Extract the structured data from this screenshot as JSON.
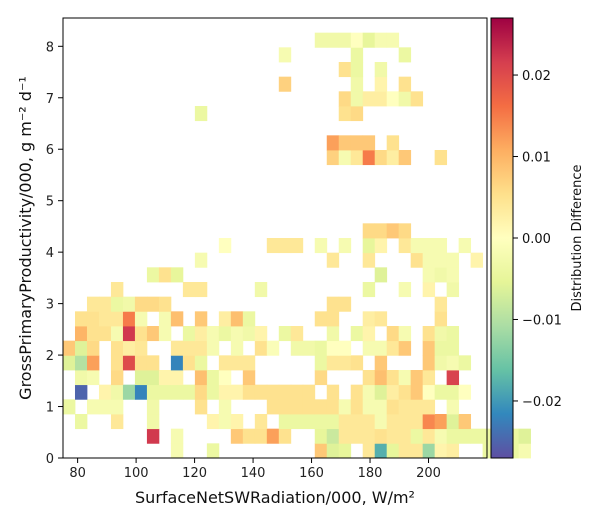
{
  "chart_data": {
    "type": "heatmap",
    "xlabel": "SurfaceNetSWRadiation/000,  W/m²",
    "ylabel": "GrossPrimaryProductivity/000,  g m⁻² d⁻¹",
    "colorbar_label": "Distribution Difference",
    "colormap": "Spectral_r",
    "xlim": [
      75,
      220
    ],
    "ylim": [
      0,
      8.55
    ],
    "clim": [
      -0.027,
      0.027
    ],
    "x_ticks": [
      80,
      100,
      120,
      140,
      160,
      180,
      200
    ],
    "y_ticks": [
      0,
      1,
      2,
      3,
      4,
      5,
      6,
      7,
      8
    ],
    "colorbar_ticks": [
      {
        "value": 0.02,
        "label": "0.02"
      },
      {
        "value": 0.01,
        "label": "0.01"
      },
      {
        "value": 0.0,
        "label": "0.00"
      },
      {
        "value": -0.01,
        "label": "−0.01"
      },
      {
        "value": -0.02,
        "label": "−0.02"
      }
    ],
    "bin_width_x": 4.1,
    "bin_height_y": 0.285,
    "bin_origin_x": 75,
    "bin_origin_y": 0,
    "cells": [
      [
        9,
        0,
        -0.002
      ],
      [
        12,
        0,
        -0.004
      ],
      [
        21,
        0,
        0.008
      ],
      [
        22,
        0,
        -0.006
      ],
      [
        23,
        0,
        -0.005
      ],
      [
        25,
        0,
        0.004
      ],
      [
        26,
        0,
        -0.018
      ],
      [
        27,
        0,
        -0.005
      ],
      [
        28,
        0,
        0.004
      ],
      [
        29,
        0,
        0.004
      ],
      [
        30,
        0,
        -0.012
      ],
      [
        31,
        0,
        0.002
      ],
      [
        32,
        0,
        0.003
      ],
      [
        35,
        0,
        -0.004
      ],
      [
        36,
        0,
        -0.004
      ],
      [
        37,
        0,
        -0.004
      ],
      [
        38,
        0,
        -0.002
      ],
      [
        7,
        1,
        0.022
      ],
      [
        9,
        1,
        -0.002
      ],
      [
        14,
        1,
        0.008
      ],
      [
        15,
        1,
        0.005
      ],
      [
        16,
        1,
        0.005
      ],
      [
        17,
        1,
        0.012
      ],
      [
        18,
        1,
        0.005
      ],
      [
        21,
        1,
        -0.005
      ],
      [
        22,
        1,
        -0.008
      ],
      [
        23,
        1,
        0.004
      ],
      [
        24,
        1,
        0.004
      ],
      [
        25,
        1,
        0.004
      ],
      [
        26,
        1,
        0.005
      ],
      [
        27,
        1,
        0.004
      ],
      [
        28,
        1,
        0.004
      ],
      [
        29,
        1,
        -0.004
      ],
      [
        30,
        1,
        0.004
      ],
      [
        31,
        1,
        -0.002
      ],
      [
        32,
        1,
        -0.004
      ],
      [
        33,
        1,
        -0.004
      ],
      [
        34,
        1,
        -0.004
      ],
      [
        35,
        1,
        -0.004
      ],
      [
        36,
        1,
        -0.004
      ],
      [
        37,
        1,
        -0.004
      ],
      [
        38,
        1,
        -0.006
      ],
      [
        1,
        2,
        -0.004
      ],
      [
        4,
        2,
        0.004
      ],
      [
        7,
        2,
        -0.003
      ],
      [
        12,
        2,
        0.002
      ],
      [
        13,
        2,
        -0.002
      ],
      [
        14,
        2,
        0.002
      ],
      [
        16,
        2,
        0.004
      ],
      [
        18,
        2,
        -0.004
      ],
      [
        19,
        2,
        -0.004
      ],
      [
        20,
        2,
        -0.004
      ],
      [
        21,
        2,
        -0.004
      ],
      [
        22,
        2,
        -0.004
      ],
      [
        23,
        2,
        0.004
      ],
      [
        24,
        2,
        0.004
      ],
      [
        25,
        2,
        0.004
      ],
      [
        26,
        2,
        -0.002
      ],
      [
        27,
        2,
        0.004
      ],
      [
        28,
        2,
        0.004
      ],
      [
        29,
        2,
        0.004
      ],
      [
        30,
        2,
        0.014
      ],
      [
        31,
        2,
        0.012
      ],
      [
        32,
        2,
        -0.006
      ],
      [
        33,
        2,
        0.008
      ],
      [
        36,
        2,
        0
      ],
      [
        0,
        3,
        -0.004
      ],
      [
        2,
        3,
        -0.002
      ],
      [
        3,
        3,
        -0.002
      ],
      [
        4,
        3,
        -0.002
      ],
      [
        7,
        3,
        -0.003
      ],
      [
        11,
        3,
        0.005
      ],
      [
        13,
        3,
        -0.002
      ],
      [
        17,
        3,
        0.005
      ],
      [
        18,
        3,
        0.005
      ],
      [
        19,
        3,
        0.005
      ],
      [
        20,
        3,
        0.005
      ],
      [
        21,
        3,
        0.005
      ],
      [
        22,
        3,
        0.005
      ],
      [
        23,
        3,
        -0.002
      ],
      [
        24,
        3,
        0.005
      ],
      [
        25,
        3,
        -0.002
      ],
      [
        26,
        3,
        -0.002
      ],
      [
        27,
        3,
        0.005
      ],
      [
        28,
        3,
        0.004
      ],
      [
        29,
        3,
        0.004
      ],
      [
        30,
        3,
        0.004
      ],
      [
        32,
        3,
        -0.002
      ],
      [
        1,
        4,
        -0.025
      ],
      [
        3,
        4,
        0.002
      ],
      [
        4,
        4,
        -0.003
      ],
      [
        5,
        4,
        -0.012
      ],
      [
        6,
        4,
        -0.022
      ],
      [
        7,
        4,
        -0.004
      ],
      [
        8,
        4,
        -0.004
      ],
      [
        9,
        4,
        -0.004
      ],
      [
        10,
        4,
        -0.004
      ],
      [
        11,
        4,
        0.006
      ],
      [
        12,
        4,
        -0.004
      ],
      [
        13,
        4,
        0.002
      ],
      [
        14,
        4,
        0.002
      ],
      [
        15,
        4,
        0.005
      ],
      [
        16,
        4,
        0.005
      ],
      [
        17,
        4,
        0.005
      ],
      [
        18,
        4,
        0.005
      ],
      [
        19,
        4,
        0.005
      ],
      [
        20,
        4,
        0.005
      ],
      [
        22,
        4,
        0.005
      ],
      [
        24,
        4,
        0.005
      ],
      [
        25,
        4,
        -0.002
      ],
      [
        26,
        4,
        -0.006
      ],
      [
        27,
        4,
        0.003
      ],
      [
        28,
        4,
        0.005
      ],
      [
        29,
        4,
        0.008
      ],
      [
        30,
        4,
        0
      ],
      [
        31,
        4,
        -0.004
      ],
      [
        32,
        4,
        -0.004
      ],
      [
        33,
        4,
        0
      ],
      [
        1,
        5,
        -0.003
      ],
      [
        2,
        5,
        -0.002
      ],
      [
        4,
        5,
        0.006
      ],
      [
        6,
        5,
        -0.006
      ],
      [
        7,
        5,
        -0.006
      ],
      [
        8,
        5,
        0.002
      ],
      [
        9,
        5,
        0.002
      ],
      [
        11,
        5,
        0.009
      ],
      [
        12,
        5,
        -0.004
      ],
      [
        13,
        5,
        0
      ],
      [
        15,
        5,
        0.008
      ],
      [
        21,
        5,
        0.006
      ],
      [
        25,
        5,
        0.005
      ],
      [
        26,
        5,
        0.009
      ],
      [
        27,
        5,
        0.005
      ],
      [
        28,
        5,
        -0.002
      ],
      [
        29,
        5,
        0.008
      ],
      [
        30,
        5,
        0.004
      ],
      [
        32,
        5,
        0.021
      ],
      [
        0,
        6,
        -0.006
      ],
      [
        1,
        6,
        -0.01
      ],
      [
        2,
        6,
        0.012
      ],
      [
        4,
        6,
        0.005
      ],
      [
        5,
        6,
        0.02
      ],
      [
        6,
        6,
        0.005
      ],
      [
        7,
        6,
        0.005
      ],
      [
        9,
        6,
        -0.022
      ],
      [
        10,
        6,
        0.005
      ],
      [
        11,
        6,
        -0.004
      ],
      [
        13,
        6,
        0.004
      ],
      [
        14,
        6,
        0.004
      ],
      [
        15,
        6,
        0.004
      ],
      [
        21,
        6,
        -0.004
      ],
      [
        22,
        6,
        0.004
      ],
      [
        23,
        6,
        0.004
      ],
      [
        24,
        6,
        0.005
      ],
      [
        26,
        6,
        0.008
      ],
      [
        30,
        6,
        0.008
      ],
      [
        31,
        6,
        -0.003
      ],
      [
        32,
        6,
        -0.002
      ],
      [
        33,
        6,
        -0.004
      ],
      [
        0,
        7,
        0.008
      ],
      [
        1,
        7,
        -0.006
      ],
      [
        2,
        7,
        0.006
      ],
      [
        4,
        7,
        0.005
      ],
      [
        5,
        7,
        0.003
      ],
      [
        6,
        7,
        0.004
      ],
      [
        9,
        7,
        0.004
      ],
      [
        10,
        7,
        0.004
      ],
      [
        11,
        7,
        0.004
      ],
      [
        12,
        7,
        -0.002
      ],
      [
        14,
        7,
        -0.002
      ],
      [
        16,
        7,
        0.005
      ],
      [
        17,
        7,
        -0.001
      ],
      [
        19,
        7,
        -0.003
      ],
      [
        20,
        7,
        -0.003
      ],
      [
        21,
        7,
        -0.004
      ],
      [
        22,
        7,
        0
      ],
      [
        23,
        7,
        0
      ],
      [
        25,
        7,
        -0.002
      ],
      [
        26,
        7,
        -0.002
      ],
      [
        27,
        7,
        0.004
      ],
      [
        28,
        7,
        0.008
      ],
      [
        30,
        7,
        0.008
      ],
      [
        31,
        7,
        -0.004
      ],
      [
        32,
        7,
        -0.004
      ],
      [
        1,
        8,
        0.01
      ],
      [
        2,
        8,
        0.005
      ],
      [
        3,
        8,
        0.005
      ],
      [
        4,
        8,
        -0.002
      ],
      [
        5,
        8,
        0.022
      ],
      [
        6,
        8,
        0.005
      ],
      [
        7,
        8,
        0.008
      ],
      [
        8,
        8,
        -0.002
      ],
      [
        10,
        8,
        -0.004
      ],
      [
        11,
        8,
        0.003
      ],
      [
        12,
        8,
        -0.002
      ],
      [
        13,
        8,
        -0.004
      ],
      [
        14,
        8,
        -0.002
      ],
      [
        15,
        8,
        -0.003
      ],
      [
        16,
        8,
        0.002
      ],
      [
        18,
        8,
        -0.004
      ],
      [
        19,
        8,
        0.004
      ],
      [
        22,
        8,
        -0.003
      ],
      [
        24,
        8,
        -0.004
      ],
      [
        25,
        8,
        0.002
      ],
      [
        27,
        8,
        0.006
      ],
      [
        28,
        8,
        -0.002
      ],
      [
        30,
        8,
        0.005
      ],
      [
        31,
        8,
        -0.003
      ],
      [
        32,
        8,
        -0.004
      ],
      [
        1,
        9,
        0.005
      ],
      [
        2,
        9,
        0.005
      ],
      [
        3,
        9,
        0.004
      ],
      [
        4,
        9,
        0.004
      ],
      [
        5,
        9,
        0.015
      ],
      [
        6,
        9,
        -0.002
      ],
      [
        8,
        9,
        -0.002
      ],
      [
        9,
        9,
        0.009
      ],
      [
        11,
        9,
        0.008
      ],
      [
        13,
        9,
        0.003
      ],
      [
        14,
        9,
        0.009
      ],
      [
        15,
        9,
        -0.004
      ],
      [
        21,
        9,
        0.005
      ],
      [
        22,
        9,
        0.005
      ],
      [
        25,
        9,
        0.003
      ],
      [
        26,
        9,
        0.004
      ],
      [
        31,
        9,
        0.005
      ],
      [
        2,
        10,
        0.004
      ],
      [
        3,
        10,
        0.004
      ],
      [
        4,
        10,
        -0.004
      ],
      [
        5,
        10,
        -0.003
      ],
      [
        6,
        10,
        0.006
      ],
      [
        7,
        10,
        0.006
      ],
      [
        8,
        10,
        0.005
      ],
      [
        22,
        10,
        0.005
      ],
      [
        23,
        10,
        0.005
      ],
      [
        31,
        10,
        0.004
      ],
      [
        4,
        11,
        0.004
      ],
      [
        10,
        11,
        0.004
      ],
      [
        11,
        11,
        0.004
      ],
      [
        16,
        11,
        -0.003
      ],
      [
        25,
        11,
        -0.004
      ],
      [
        28,
        11,
        -0.002
      ],
      [
        30,
        11,
        0.002
      ],
      [
        32,
        11,
        -0.003
      ],
      [
        7,
        12,
        -0.004
      ],
      [
        8,
        12,
        0.005
      ],
      [
        9,
        12,
        -0.005
      ],
      [
        26,
        12,
        -0.006
      ],
      [
        30,
        12,
        -0.002
      ],
      [
        31,
        12,
        -0.003
      ],
      [
        32,
        12,
        -0.002
      ],
      [
        11,
        13,
        -0.002
      ],
      [
        22,
        13,
        0.004
      ],
      [
        25,
        13,
        0.004
      ],
      [
        29,
        13,
        0.005
      ],
      [
        30,
        13,
        -0.002
      ],
      [
        31,
        13,
        -0.002
      ],
      [
        32,
        13,
        -0.002
      ],
      [
        34,
        13,
        0.002
      ],
      [
        13,
        14,
        0
      ],
      [
        17,
        14,
        0.004
      ],
      [
        18,
        14,
        0.004
      ],
      [
        19,
        14,
        0.004
      ],
      [
        21,
        14,
        -0.002
      ],
      [
        23,
        14,
        -0.002
      ],
      [
        25,
        14,
        -0.005
      ],
      [
        26,
        14,
        0.002
      ],
      [
        28,
        14,
        0.004
      ],
      [
        29,
        14,
        -0.002
      ],
      [
        30,
        14,
        -0.002
      ],
      [
        31,
        14,
        -0.002
      ],
      [
        33,
        14,
        -0.002
      ],
      [
        25,
        15,
        0.006
      ],
      [
        26,
        15,
        0.006
      ],
      [
        27,
        15,
        0.008
      ],
      [
        28,
        15,
        0.006
      ],
      [
        22,
        20,
        0.007
      ],
      [
        23,
        20,
        -0.002
      ],
      [
        24,
        20,
        0.004
      ],
      [
        25,
        20,
        0.015
      ],
      [
        26,
        20,
        0.006
      ],
      [
        27,
        20,
        0.003
      ],
      [
        28,
        20,
        0.008
      ],
      [
        31,
        20,
        0.005
      ],
      [
        22,
        21,
        0.012
      ],
      [
        23,
        21,
        0.008
      ],
      [
        24,
        21,
        0.008
      ],
      [
        25,
        21,
        0.008
      ],
      [
        27,
        21,
        0.005
      ],
      [
        11,
        23,
        -0.004
      ],
      [
        23,
        23,
        0.005
      ],
      [
        24,
        23,
        0.006
      ],
      [
        23,
        24,
        0.006
      ],
      [
        24,
        24,
        -0.003
      ],
      [
        25,
        24,
        0.003
      ],
      [
        26,
        24,
        0.003
      ],
      [
        27,
        24,
        0
      ],
      [
        28,
        24,
        -0.003
      ],
      [
        29,
        24,
        0.005
      ],
      [
        18,
        25,
        0.007
      ],
      [
        24,
        25,
        -0.003
      ],
      [
        26,
        25,
        0.002
      ],
      [
        28,
        25,
        0.005
      ],
      [
        23,
        26,
        0.005
      ],
      [
        24,
        26,
        -0.004
      ],
      [
        26,
        26,
        -0.003
      ],
      [
        18,
        27,
        -0.002
      ],
      [
        24,
        27,
        -0.004
      ],
      [
        28,
        27,
        -0.004
      ],
      [
        21,
        28,
        -0.003
      ],
      [
        22,
        28,
        -0.003
      ],
      [
        23,
        28,
        -0.003
      ],
      [
        24,
        28,
        0
      ],
      [
        25,
        28,
        -0.005
      ],
      [
        26,
        28,
        -0.002
      ],
      [
        27,
        28,
        -0.002
      ]
    ]
  }
}
